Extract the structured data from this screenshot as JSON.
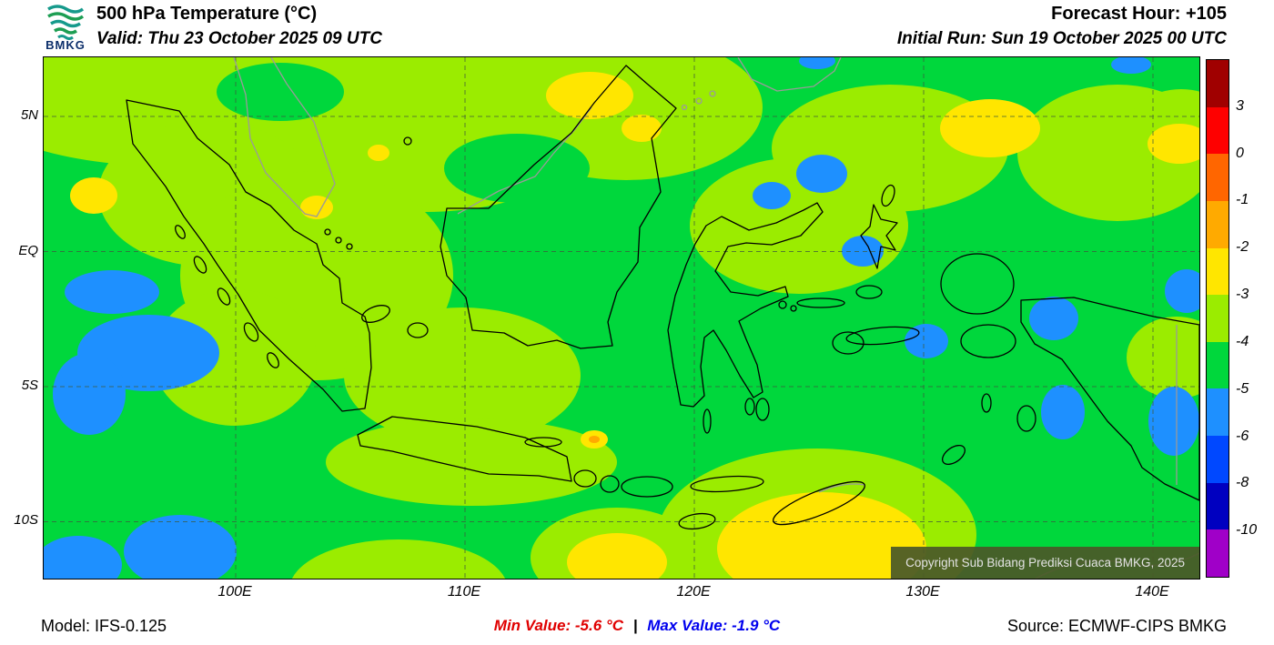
{
  "header": {
    "logo_text": "BMKG",
    "title": "500 hPa Temperature (°C)",
    "valid_label": "Valid: Thu 23 October 2025 09 UTC",
    "forecast_hour": "Forecast Hour: +105",
    "initial_run": "Initial Run: Sun 19 October 2025 00 UTC"
  },
  "map": {
    "y_ticks": [
      "5N",
      "EQ",
      "5S",
      "10S"
    ],
    "x_ticks": [
      "100E",
      "110E",
      "120E",
      "130E",
      "140E"
    ],
    "copyright": "Copyright Sub Bidang Prediksi Cuaca BMKG, 2025"
  },
  "colorbar": {
    "labels": [
      "3",
      "0",
      "-1",
      "-2",
      "-3",
      "-4",
      "-5",
      "-6",
      "-8",
      "-10"
    ],
    "segments": [
      "#a00000",
      "#fe0000",
      "#ff6600",
      "#ffaa00",
      "#ffe600",
      "#9bec00",
      "#00d73c",
      "#1e90ff",
      "#0048ff",
      "#0000c0",
      "#a000c8"
    ]
  },
  "palette": {
    "green": "#00d73c",
    "chartreuse": "#9bec00",
    "yellow": "#ffe600",
    "orange": "#ffaa00",
    "blue": "#1e90ff",
    "grid": "#3d5a3d",
    "coast_domestic": "#000000",
    "coast_foreign": "#9a9a9a"
  },
  "footer": {
    "model": "Model: IFS-0.125",
    "min_value": "Min Value: -5.6 °C",
    "separator": "|",
    "max_value": "Max Value: -1.9 °C",
    "source": "Source: ECMWF-CIPS BMKG"
  }
}
